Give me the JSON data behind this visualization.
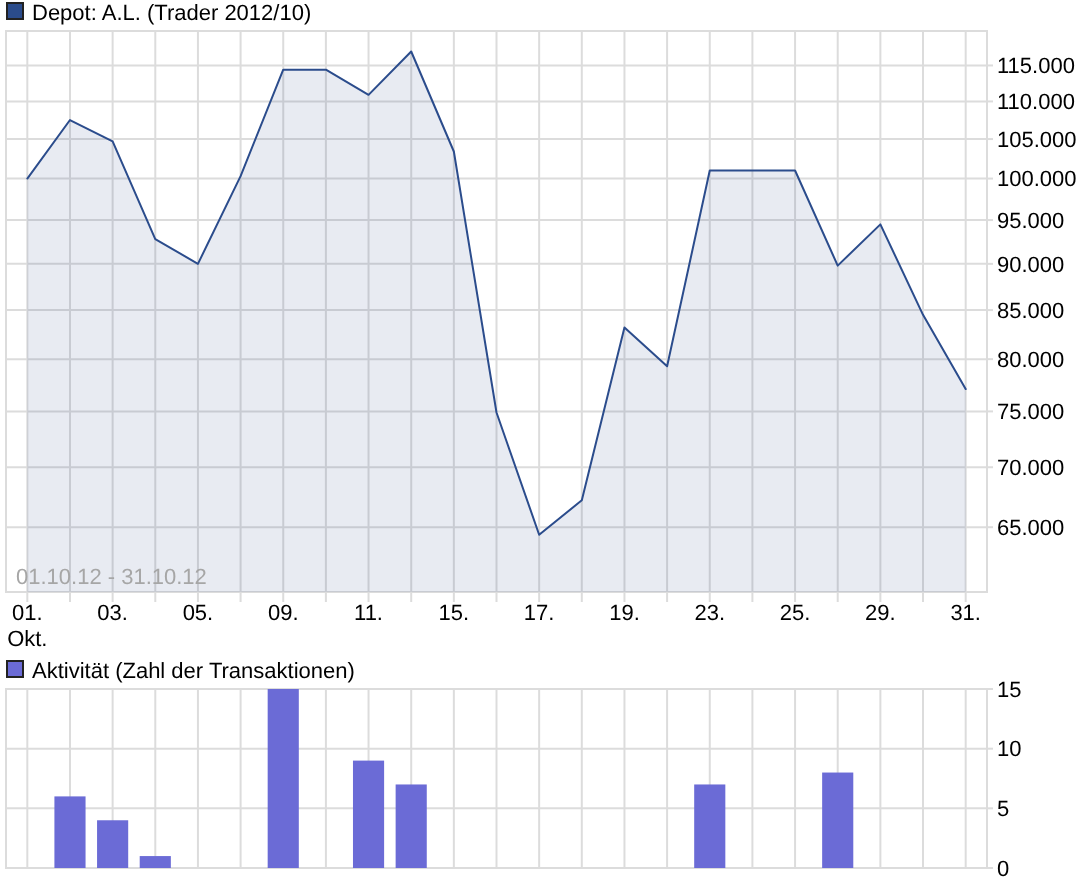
{
  "chart_data": [
    {
      "type": "area",
      "categories": [
        "01.\nOkt.",
        null,
        "03.",
        null,
        "05.",
        null,
        "09.",
        null,
        "11.",
        null,
        "15.",
        null,
        "17.",
        null,
        "19.",
        null,
        "23.",
        null,
        "25.",
        null,
        "29.",
        null,
        "31."
      ],
      "series": [
        {
          "name": "Depot: A.L. (Trader 2012/10)",
          "color": "#2b4c8c",
          "values": [
            100000,
            107500,
            104700,
            92800,
            90000,
            100300,
            114400,
            114400,
            110900,
            117000,
            103400,
            74900,
            64400,
            67200,
            83200,
            79300,
            101000,
            101000,
            101000,
            89800,
            94500,
            84500,
            77100
          ]
        }
      ],
      "ylim": [
        60000,
        120000
      ],
      "log": "y",
      "yticks": [
        {
          "value": 65000,
          "label": "65.000"
        },
        {
          "value": 70000,
          "label": "70.000"
        },
        {
          "value": 75000,
          "label": "75.000"
        },
        {
          "value": 80000,
          "label": "80.000"
        },
        {
          "value": 85000,
          "label": "85.000"
        },
        {
          "value": 90000,
          "label": "90.000"
        },
        {
          "value": 95000,
          "label": "95.000"
        },
        {
          "value": 100000,
          "label": "100.000"
        },
        {
          "value": 105000,
          "label": "105.000"
        },
        {
          "value": 110000,
          "label": "110.000"
        },
        {
          "value": 115000,
          "label": "115.000"
        }
      ],
      "grid": true,
      "legend": "top left",
      "annotations": [
        "01.10.12 - 31.10.12"
      ]
    },
    {
      "type": "bar",
      "categories": [
        null,
        null,
        null,
        null,
        null,
        null,
        null,
        null,
        null,
        null,
        null,
        null,
        null,
        null,
        null,
        null,
        null,
        null,
        null,
        null,
        null,
        null,
        null
      ],
      "series": [
        {
          "name": "Aktivität (Zahl der Transaktionen)",
          "color": "#6b6bd6",
          "values": [
            0,
            6,
            4,
            1,
            0,
            0,
            15,
            0,
            9,
            7,
            0,
            0,
            0,
            0,
            0,
            0,
            7,
            0,
            0,
            8,
            0,
            0,
            0
          ]
        }
      ],
      "ylim": [
        0,
        15
      ],
      "yticks": [
        0,
        5,
        10,
        15
      ],
      "grid": true,
      "legend": "top left"
    }
  ]
}
